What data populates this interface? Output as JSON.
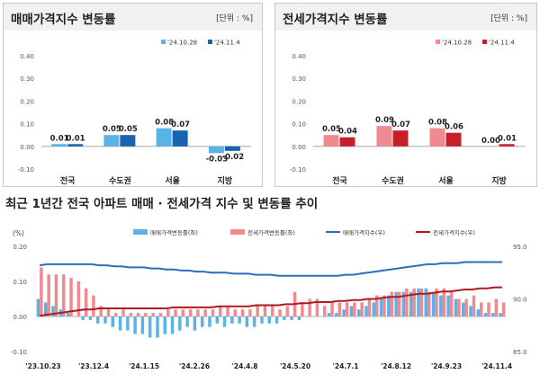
{
  "colors": {
    "sale_light": "#5ab3e8",
    "sale_dark": "#1a63b0",
    "jeonse_light": "#f08a8e",
    "jeonse_dark": "#c81e2a",
    "sale_index_line": "#2a6fb8",
    "jeonse_index_line": "#b2191e"
  },
  "top_charts": {
    "sale": {
      "title": "매매가격지수 변동률",
      "unit": "[단위 : %]"
    },
    "jeonse": {
      "title": "전세가격지수 변동률",
      "unit": "[단위 : %]"
    }
  },
  "bottom_chart": {
    "title": "최근 1년간 전국 아파트 매매 · 전세가격 지수 및 변동률 추이",
    "left_unit": "(%)",
    "legend": [
      "매매가격변동률(좌)",
      "전세가격변동률(좌)",
      "매매가격지수(우)",
      "전세가격지수(우)"
    ]
  },
  "chart_data": [
    {
      "type": "bar",
      "title": "매매가격지수 변동률",
      "categories": [
        "전국",
        "수도권",
        "서울",
        "지방"
      ],
      "series": [
        {
          "name": "'24.10.28",
          "values": [
            0.01,
            0.05,
            0.08,
            -0.03
          ]
        },
        {
          "name": "'24.11.4",
          "values": [
            0.01,
            0.05,
            0.07,
            -0.02
          ]
        }
      ],
      "data_labels": [
        [
          "0.01",
          "0.05",
          "0.08",
          "-0.03"
        ],
        [
          "0.01",
          "0.05",
          "0.07",
          "-0.02"
        ]
      ],
      "ylim": [
        -0.1,
        0.4
      ],
      "yticks": [
        "0.40",
        "0.30",
        "0.20",
        "0.10",
        "0.00",
        "-0.10"
      ],
      "legend": "top-right",
      "grid": false
    },
    {
      "type": "bar",
      "title": "전세가격지수 변동률",
      "categories": [
        "전국",
        "수도권",
        "서울",
        "지방"
      ],
      "series": [
        {
          "name": "'24.10.28",
          "values": [
            0.05,
            0.09,
            0.08,
            0.0
          ]
        },
        {
          "name": "'24.11.4",
          "values": [
            0.04,
            0.07,
            0.06,
            0.01
          ]
        }
      ],
      "data_labels": [
        [
          "0.05",
          "0.09",
          "0.08",
          "0.00"
        ],
        [
          "0.04",
          "0.07",
          "0.06",
          "0.01"
        ]
      ],
      "ylim": [
        -0.1,
        0.4
      ],
      "yticks": [
        "0.40",
        "0.30",
        "0.20",
        "0.10",
        "0.00",
        "-0.10"
      ],
      "legend": "top-right",
      "grid": false
    },
    {
      "type": "bar",
      "title": "최근 1년간 전국 아파트 매매 · 전세가격 지수 및 변동률 추이",
      "x_tick_labels": [
        "'23.10.23",
        "'23.12.4",
        "'24.1.15",
        "'24.2.26",
        "'24.4.8",
        "'24.5.20",
        "'24.7.1",
        "'24.8.12",
        "'24.9.23",
        "'24.11.4"
      ],
      "y_left": {
        "ylim": [
          -0.1,
          0.2
        ],
        "ticks": [
          "0.20",
          "0.10",
          "0.00",
          "-0.10"
        ]
      },
      "y_right": {
        "ylim": [
          85.0,
          95.0
        ],
        "ticks": [
          "95.0",
          "90.0",
          "85.0"
        ]
      },
      "legend": "top",
      "grid": false,
      "series": [
        {
          "name": "매매가격변동률(좌)",
          "type": "bar",
          "values": [
            0.05,
            0.04,
            0.03,
            0.02,
            0.01,
            0.0,
            -0.01,
            -0.01,
            -0.02,
            -0.02,
            -0.03,
            -0.04,
            -0.04,
            -0.05,
            -0.05,
            -0.06,
            -0.06,
            -0.05,
            -0.05,
            -0.04,
            -0.03,
            -0.04,
            -0.03,
            -0.03,
            -0.02,
            -0.03,
            -0.02,
            -0.02,
            -0.03,
            -0.03,
            -0.02,
            -0.02,
            -0.02,
            -0.01,
            -0.01,
            -0.01,
            0.0,
            0.0,
            0.0,
            0.01,
            0.01,
            0.02,
            0.03,
            0.02,
            0.03,
            0.04,
            0.05,
            0.06,
            0.07,
            0.07,
            0.07,
            0.08,
            0.08,
            0.07,
            0.06,
            0.06,
            0.05,
            0.04,
            0.03,
            0.02,
            0.01,
            0.01,
            0.01
          ]
        },
        {
          "name": "전세가격변동률(좌)",
          "type": "bar",
          "values": [
            0.14,
            0.12,
            0.12,
            0.12,
            0.11,
            0.1,
            0.08,
            0.06,
            0.03,
            0.02,
            0.01,
            0.02,
            0.01,
            0.01,
            0.01,
            0.01,
            0.01,
            0.02,
            0.02,
            0.02,
            0.02,
            0.02,
            0.02,
            0.02,
            0.03,
            0.03,
            0.02,
            0.02,
            0.02,
            0.03,
            0.03,
            0.03,
            0.02,
            0.03,
            0.07,
            0.04,
            0.05,
            0.05,
            0.03,
            0.04,
            0.04,
            0.04,
            0.04,
            0.04,
            0.05,
            0.06,
            0.06,
            0.07,
            0.07,
            0.08,
            0.08,
            0.08,
            0.07,
            0.08,
            0.08,
            0.07,
            0.05,
            0.05,
            0.06,
            0.04,
            0.04,
            0.05,
            0.04
          ]
        },
        {
          "name": "매매가격지수(우)",
          "type": "line",
          "values": [
            93.2,
            93.3,
            93.3,
            93.3,
            93.3,
            93.3,
            93.3,
            93.3,
            93.2,
            93.2,
            93.1,
            93.1,
            93.0,
            93.0,
            93.0,
            92.9,
            92.9,
            92.8,
            92.8,
            92.7,
            92.7,
            92.6,
            92.6,
            92.5,
            92.5,
            92.5,
            92.4,
            92.4,
            92.4,
            92.3,
            92.3,
            92.3,
            92.2,
            92.2,
            92.2,
            92.2,
            92.2,
            92.2,
            92.2,
            92.2,
            92.2,
            92.3,
            92.3,
            92.4,
            92.5,
            92.6,
            92.7,
            92.8,
            92.9,
            93.0,
            93.1,
            93.2,
            93.3,
            93.3,
            93.4,
            93.4,
            93.4,
            93.5,
            93.5,
            93.5,
            93.5,
            93.5,
            93.5
          ]
        },
        {
          "name": "전세가격지수(우)",
          "type": "line",
          "values": [
            88.4,
            88.5,
            88.6,
            88.7,
            88.8,
            88.9,
            89.0,
            89.0,
            89.1,
            89.1,
            89.1,
            89.1,
            89.1,
            89.1,
            89.1,
            89.1,
            89.1,
            89.1,
            89.2,
            89.2,
            89.2,
            89.2,
            89.2,
            89.2,
            89.3,
            89.3,
            89.3,
            89.3,
            89.3,
            89.4,
            89.4,
            89.4,
            89.4,
            89.5,
            89.5,
            89.6,
            89.6,
            89.7,
            89.7,
            89.7,
            89.8,
            89.8,
            89.9,
            89.9,
            90.0,
            90.0,
            90.1,
            90.2,
            90.2,
            90.3,
            90.4,
            90.5,
            90.5,
            90.6,
            90.7,
            90.7,
            90.8,
            90.9,
            90.9,
            91.0,
            91.0,
            91.1,
            91.1
          ]
        }
      ]
    }
  ]
}
